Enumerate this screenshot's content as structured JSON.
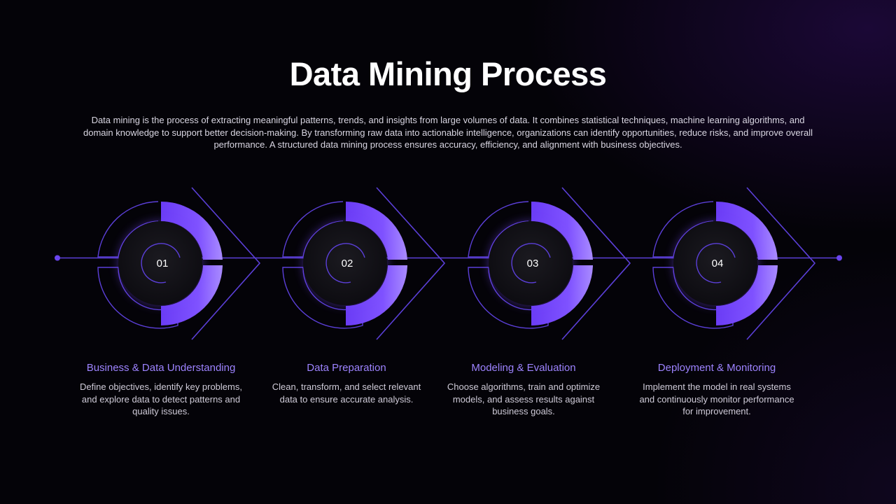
{
  "title": "Data Mining Process",
  "intro": "Data mining is the process of extracting meaningful patterns, trends, and insights from large volumes of data. It combines statistical techniques, machine learning algorithms, and domain knowledge to support better decision-making. By transforming raw data into actionable intelligence, organizations can identify opportunities, reduce risks, and improve overall performance. A structured data mining process ensures accuracy, efficiency, and alignment with business objectives.",
  "colors": {
    "accent": "#7a4cff",
    "accent_light": "#9d83ff",
    "line": "#5b3fd8",
    "background": "#040308",
    "disc": "#151419"
  },
  "steps": [
    {
      "number": "01",
      "heading": "Business & Data Understanding",
      "description": "Define objectives, identify key problems, and explore data to detect patterns and quality issues."
    },
    {
      "number": "02",
      "heading": "Data Preparation",
      "description": "Clean, transform, and select relevant data to ensure accurate analysis."
    },
    {
      "number": "03",
      "heading": "Modeling & Evaluation",
      "description": "Choose algorithms, train and optimize models, and assess results against business goals."
    },
    {
      "number": "04",
      "heading": "Deployment & Monitoring",
      "description": "Implement the model in real systems and continuously monitor performance for improvement."
    }
  ]
}
